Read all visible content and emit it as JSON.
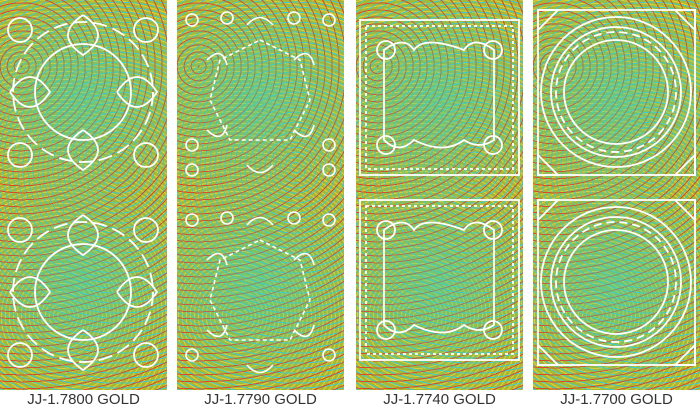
{
  "products": [
    {
      "code": "JJ-1.7800 GOLD",
      "pattern": "floral-circle-lace"
    },
    {
      "code": "JJ-1.7790 GOLD",
      "pattern": "floral-leaf-lace"
    },
    {
      "code": "JJ-1.7740 GOLD",
      "pattern": "square-corner-frame"
    },
    {
      "code": "JJ-1.7700 GOLD",
      "pattern": "circle-triangle-frame"
    }
  ],
  "colors": {
    "line": "#ffffff",
    "label": "#333333"
  }
}
